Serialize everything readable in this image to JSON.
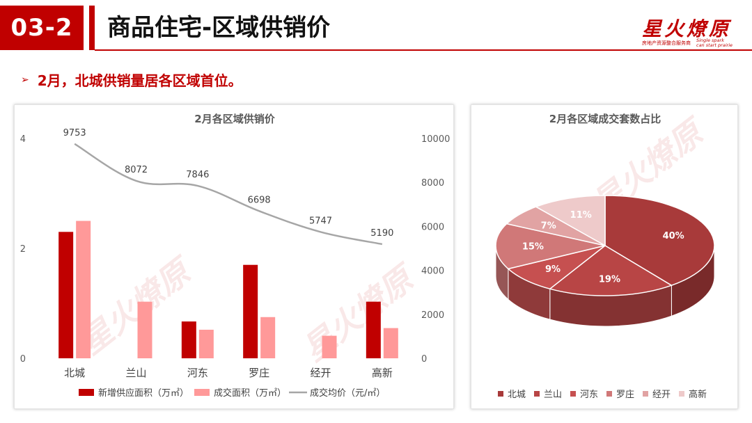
{
  "header": {
    "badge": "03-2",
    "title": "商品住宅-区域供销价",
    "logo_main": "星火燎原",
    "logo_sub_cn": "房地产资源整合服务商",
    "logo_sub_en1": "Single spark",
    "logo_sub_en2": "can start prairie"
  },
  "bullet": {
    "arrow": "➢",
    "text": "2月，北城供销量居各区域首位。"
  },
  "colors": {
    "accent": "#c00000",
    "supply": "#c00000",
    "deal": "#ff9999",
    "price_line": "#a6a6a6"
  },
  "chart_data": [
    {
      "type": "bar",
      "title": "2月各区域供销价",
      "categories": [
        "北城",
        "兰山",
        "河东",
        "罗庄",
        "经开",
        "高新"
      ],
      "series": [
        {
          "name": "新增供应面积（万㎡）",
          "type": "bar",
          "axis": "left",
          "values": [
            2.3,
            0,
            0.67,
            1.7,
            0,
            1.03
          ]
        },
        {
          "name": "成交面积（万㎡）",
          "type": "bar",
          "axis": "left",
          "values": [
            2.5,
            1.03,
            0.52,
            0.75,
            0.41,
            0.55
          ]
        },
        {
          "name": "成交均价（元/㎡）",
          "type": "line",
          "axis": "right",
          "values": [
            9753,
            8072,
            7846,
            6698,
            5747,
            5190
          ]
        }
      ],
      "y_left": {
        "range": [
          0,
          4
        ],
        "ticks": [
          "0",
          "2",
          "4"
        ]
      },
      "y_right": {
        "range": [
          0,
          10000
        ],
        "ticks": [
          "0",
          "2000",
          "4000",
          "6000",
          "8000",
          "10000"
        ]
      },
      "grid": false,
      "legend": "bottom"
    },
    {
      "type": "pie",
      "title": "2月各区域成交套数占比",
      "labels": [
        "北城",
        "兰山",
        "河东",
        "罗庄",
        "经开",
        "高新"
      ],
      "values": [
        40,
        19,
        9,
        15,
        7,
        11
      ],
      "value_labels": [
        "40%",
        "19%",
        "9%",
        "15%",
        "7%",
        "11%"
      ],
      "colors": [
        "#a83a3a",
        "#b84545",
        "#c65050",
        "#d07878",
        "#e1a3a3",
        "#eecaca"
      ],
      "legend": "bottom"
    }
  ]
}
